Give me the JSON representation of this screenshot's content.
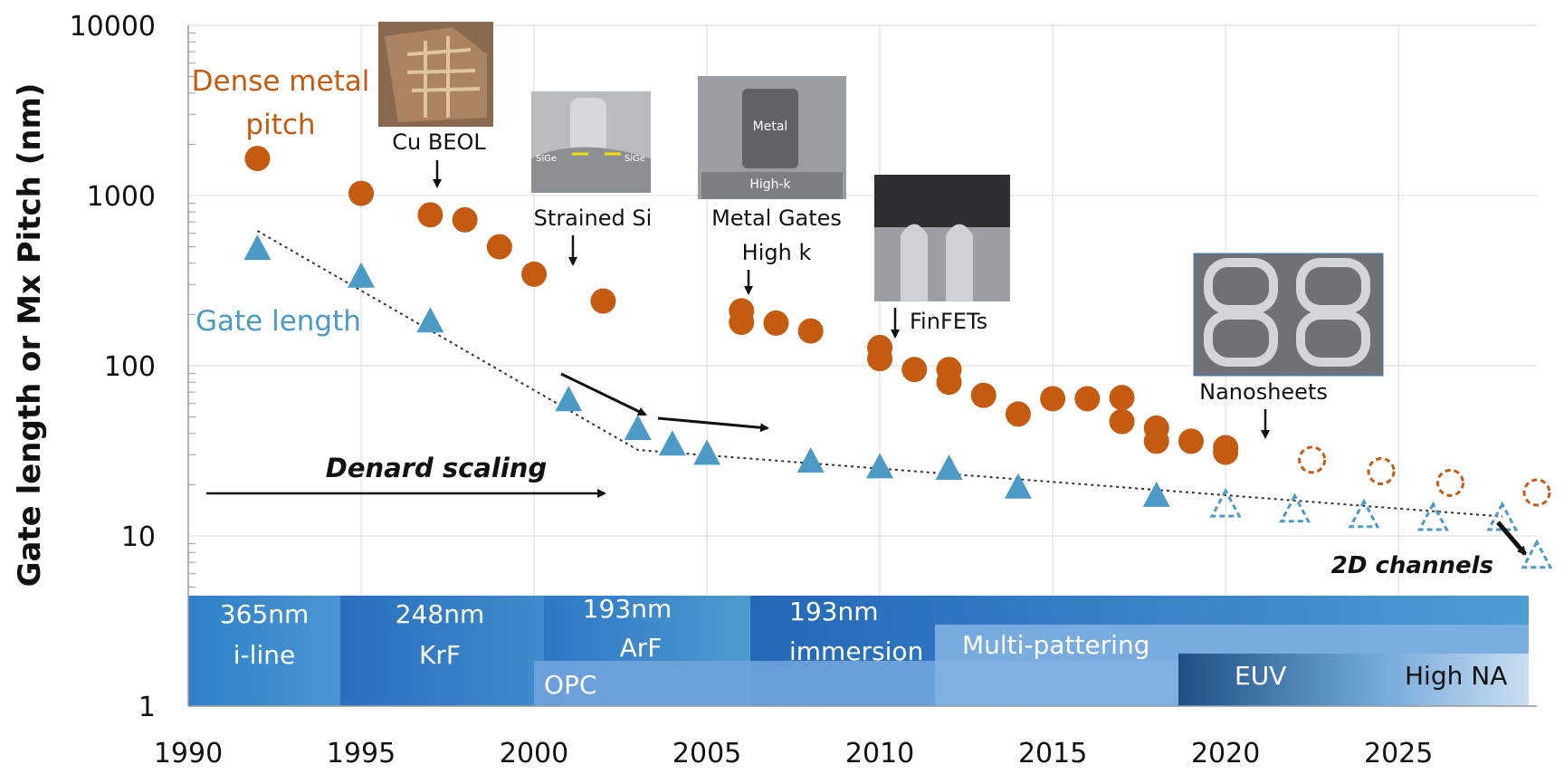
{
  "chart_data": {
    "type": "scatter",
    "title": "",
    "xlabel": "",
    "ylabel": "Gate length or Mx Pitch (nm)",
    "xlim": [
      1990,
      2029
    ],
    "ylim": [
      1,
      10000
    ],
    "y_scale": "log",
    "grid": true,
    "x_ticks": [
      "1990",
      "1995",
      "2000",
      "2005",
      "2010",
      "2015",
      "2020",
      "2025"
    ],
    "y_ticks": [
      "1",
      "10",
      "100",
      "1000",
      "10000"
    ],
    "series": [
      {
        "name": "Dense metal pitch",
        "color": "#c55a11",
        "marker": "circle-filled",
        "points": [
          [
            1992,
            1650
          ],
          [
            1995,
            1030
          ],
          [
            1997,
            770
          ],
          [
            1998,
            720
          ],
          [
            1999,
            500
          ],
          [
            2000,
            345
          ],
          [
            2002,
            240
          ],
          [
            2006,
            210
          ],
          [
            2006,
            180
          ],
          [
            2007,
            178
          ],
          [
            2008,
            160
          ],
          [
            2010,
            128
          ],
          [
            2010,
            110
          ],
          [
            2011,
            95
          ],
          [
            2012,
            95
          ],
          [
            2012,
            80
          ],
          [
            2013,
            67
          ],
          [
            2014,
            52
          ],
          [
            2015,
            64
          ],
          [
            2016,
            64
          ],
          [
            2017,
            65
          ],
          [
            2017,
            47
          ],
          [
            2018,
            43
          ],
          [
            2018,
            36
          ],
          [
            2019,
            36
          ],
          [
            2020,
            33
          ],
          [
            2020,
            31
          ]
        ]
      },
      {
        "name": "Dense metal pitch (projected)",
        "color": "#c55a11",
        "marker": "circle-open",
        "points": [
          [
            2022.5,
            28
          ],
          [
            2024.5,
            24
          ],
          [
            2026.5,
            20.5
          ],
          [
            2029,
            18
          ]
        ]
      },
      {
        "name": "Gate length",
        "color": "#4b9bc6",
        "marker": "triangle-filled",
        "points": [
          [
            1992,
            480
          ],
          [
            1995,
            330
          ],
          [
            1997,
            180
          ],
          [
            2001,
            62
          ],
          [
            2003,
            42
          ],
          [
            2004,
            34
          ],
          [
            2005,
            30
          ],
          [
            2008,
            27
          ],
          [
            2010,
            25
          ],
          [
            2012,
            24.5
          ],
          [
            2014,
            19
          ],
          [
            2018,
            17
          ]
        ]
      },
      {
        "name": "Gate length (projected)",
        "color": "#4b9bc6",
        "marker": "triangle-open",
        "points": [
          [
            2020,
            15
          ],
          [
            2022,
            14
          ],
          [
            2024,
            13
          ],
          [
            2026,
            12.5
          ],
          [
            2028,
            12.5
          ],
          [
            2029,
            7.5
          ]
        ]
      }
    ],
    "trend_line": [
      [
        1992,
        620
      ],
      [
        2003,
        32
      ],
      [
        2028,
        13
      ]
    ],
    "series_labels": {
      "metal": "Dense metal pitch",
      "gate": "Gate length"
    },
    "annotations": {
      "cu_beol": "Cu BEOL",
      "strained_si": "Strained Si",
      "metal_gates": "Metal Gates",
      "high_k": "High k",
      "finfets": "FinFETs",
      "nanosheets": "Nanosheets",
      "denard": "Denard scaling",
      "two_d": "2D channels",
      "photo_metal": "Metal",
      "photo_highk": "High-k",
      "photo_sige_left": "SiGe",
      "photo_sige_right": "SiGe"
    },
    "lithography": {
      "i_line_1": "365nm",
      "i_line_2": "i-line",
      "krf_1": "248nm",
      "krf_2": "KrF",
      "arf_1": "193nm",
      "arf_2": "ArF",
      "imm_1": "193nm",
      "imm_2": "immersion",
      "opc": "OPC",
      "multi": "Multi-pattering",
      "euv": "EUV",
      "high_na": "High NA"
    }
  }
}
